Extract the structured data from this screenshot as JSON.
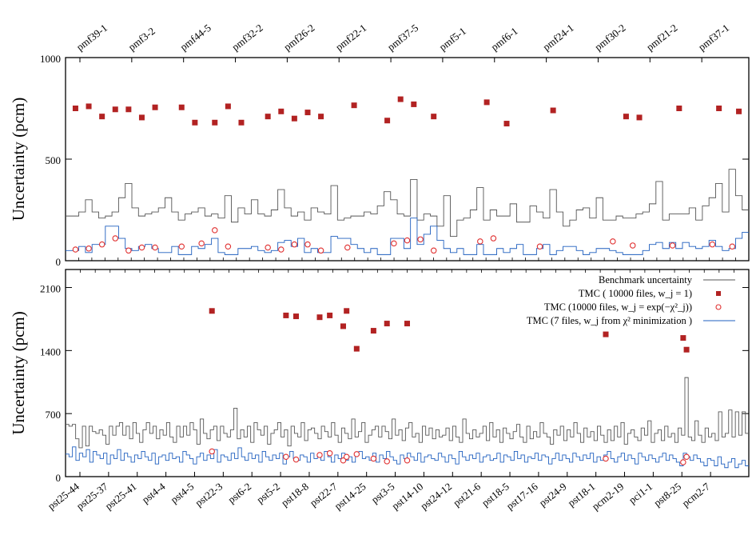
{
  "chart_data": [
    {
      "type": "scatter",
      "panel": "top",
      "title": "",
      "ylabel": "Uncertainty (pcm)",
      "xlabel": "",
      "ylim": [
        0,
        1000
      ],
      "yticks": [
        "0",
        "500",
        "1000"
      ],
      "top_tick_labels": [
        "pmf39-1",
        "pmf3-2",
        "pmf44-5",
        "pmf32-2",
        "pmf26-2",
        "pmf22-1",
        "pmf37-5",
        "pmf5-1",
        "pmf6-1",
        "pmf24-1",
        "pmf30-2",
        "pmf21-2",
        "pmf37-1"
      ],
      "series": [
        {
          "name": "Benchmark uncertainty",
          "style": "step",
          "color": "#555555",
          "values": [
            220,
            220,
            240,
            300,
            240,
            210,
            220,
            240,
            310,
            380,
            260,
            220,
            230,
            240,
            260,
            310,
            240,
            200,
            230,
            240,
            260,
            220,
            230,
            210,
            320,
            190,
            260,
            230,
            300,
            230,
            220,
            250,
            350,
            260,
            220,
            240,
            200,
            260,
            240,
            230,
            370,
            200,
            210,
            220,
            220,
            240,
            230,
            270,
            340,
            300,
            230,
            220,
            400,
            200,
            230,
            220,
            170,
            320,
            120,
            200,
            210,
            250,
            360,
            200,
            250,
            220,
            220,
            280,
            190,
            190,
            270,
            240,
            210,
            350,
            240,
            170,
            200,
            250,
            260,
            210,
            310,
            200,
            200,
            220,
            210,
            210,
            230,
            240,
            280,
            390,
            200,
            230,
            230,
            230,
            260,
            200,
            270,
            310,
            380,
            240,
            450,
            320,
            250
          ]
        },
        {
          "name": "TMC (7 files, w_j from χ² minimization)",
          "style": "step",
          "color": "#1f5fbf",
          "values": [
            50,
            50,
            70,
            40,
            80,
            80,
            170,
            170,
            110,
            60,
            50,
            70,
            80,
            60,
            40,
            40,
            70,
            30,
            30,
            70,
            60,
            80,
            110,
            40,
            30,
            30,
            60,
            60,
            70,
            50,
            40,
            50,
            90,
            100,
            70,
            110,
            40,
            60,
            40,
            40,
            120,
            110,
            110,
            80,
            60,
            40,
            60,
            30,
            30,
            110,
            110,
            60,
            210,
            80,
            130,
            170,
            100,
            60,
            40,
            60,
            30,
            30,
            80,
            30,
            30,
            60,
            40,
            60,
            80,
            30,
            30,
            60,
            80,
            30,
            50,
            70,
            70,
            50,
            30,
            40,
            60,
            60,
            50,
            40,
            30,
            30,
            30,
            50,
            80,
            90,
            60,
            90,
            60,
            90,
            70,
            60,
            70,
            100,
            70,
            50,
            60,
            110,
            140
          ]
        },
        {
          "name": "TMC ( 10000 files, w_j = 1)",
          "style": "square",
          "color": "#b22222",
          "points": [
            [
              1,
              750
            ],
            [
              3,
              760
            ],
            [
              5,
              710
            ],
            [
              7,
              745
            ],
            [
              9,
              745
            ],
            [
              11,
              705
            ],
            [
              13,
              755
            ],
            [
              17,
              755
            ],
            [
              19,
              680
            ],
            [
              22,
              680
            ],
            [
              24,
              760
            ],
            [
              26,
              680
            ],
            [
              30,
              710
            ],
            [
              32,
              735
            ],
            [
              34,
              700
            ],
            [
              36,
              730
            ],
            [
              38,
              710
            ],
            [
              43,
              765
            ],
            [
              48,
              690
            ],
            [
              50,
              795
            ],
            [
              52,
              770
            ],
            [
              55,
              710
            ],
            [
              63,
              780
            ],
            [
              66,
              675
            ],
            [
              73,
              740
            ],
            [
              84,
              710
            ],
            [
              86,
              705
            ],
            [
              92,
              750
            ],
            [
              98,
              750
            ],
            [
              101,
              735
            ],
            [
              111,
              775
            ],
            [
              121,
              740
            ],
            [
              132,
              740
            ]
          ]
        },
        {
          "name": "TMC (10000 files, w_j = exp(−χ²_j))",
          "style": "circle",
          "color": "#e03030",
          "points": [
            [
              1,
              55
            ],
            [
              3,
              60
            ],
            [
              5,
              80
            ],
            [
              7,
              110
            ],
            [
              9,
              50
            ],
            [
              11,
              65
            ],
            [
              13,
              65
            ],
            [
              17,
              70
            ],
            [
              20,
              85
            ],
            [
              22,
              150
            ],
            [
              24,
              70
            ],
            [
              30,
              65
            ],
            [
              32,
              55
            ],
            [
              34,
              80
            ],
            [
              36,
              80
            ],
            [
              38,
              50
            ],
            [
              42,
              65
            ],
            [
              49,
              85
            ],
            [
              51,
              100
            ],
            [
              53,
              105
            ],
            [
              55,
              50
            ],
            [
              62,
              95
            ],
            [
              64,
              110
            ],
            [
              71,
              70
            ],
            [
              82,
              95
            ],
            [
              85,
              75
            ],
            [
              91,
              75
            ],
            [
              97,
              80
            ],
            [
              100,
              70
            ],
            [
              112,
              140
            ],
            [
              122,
              60
            ],
            [
              133,
              55
            ]
          ]
        }
      ]
    },
    {
      "type": "scatter",
      "panel": "bottom",
      "title": "",
      "ylabel": "Uncertainty (pcm)",
      "xlabel": "",
      "ylim": [
        0,
        2300
      ],
      "yticks": [
        "0",
        "700",
        "1400",
        "2100"
      ],
      "x_tick_labels": [
        "pst25-44",
        "pst25-37",
        "pst25-41",
        "pst4-4",
        "pst4-5",
        "pst22-3",
        "pst6-2",
        "pst5-2",
        "pst18-8",
        "pst22-7",
        "pst14-25",
        "pst3-5",
        "pst14-10",
        "pst24-12",
        "pst21-6",
        "pst18-5",
        "pst17-16",
        "pst24-9",
        "pst18-1",
        "pcm2-19",
        "pci1-1",
        "pst8-25",
        "pcm2-7"
      ],
      "legend": {
        "position": "top-right",
        "entries": [
          "Benchmark uncertainty",
          "TMC ( 10000 files, w_j = 1)",
          "TMC (10000 files, w_j = exp(−χ²_j))",
          "TMC (7 files, w_j from χ² minimization )"
        ]
      },
      "series": [
        {
          "name": "Benchmark uncertainty",
          "style": "step",
          "color": "#555555",
          "values": [
            580,
            560,
            580,
            420,
            320,
            560,
            340,
            560,
            500,
            480,
            520,
            460,
            360,
            560,
            460,
            560,
            600,
            460,
            560,
            420,
            600,
            480,
            380,
            520,
            600,
            480,
            560,
            420,
            520,
            460,
            600,
            440,
            380,
            560,
            440,
            560,
            460,
            600,
            520,
            360,
            640,
            480,
            420,
            520,
            560,
            400,
            560,
            480,
            440,
            520,
            760,
            420,
            520,
            440,
            560,
            380,
            600,
            520,
            460,
            560,
            360,
            480,
            520,
            600,
            440,
            520,
            340,
            560,
            480,
            440,
            600,
            400,
            520,
            540,
            480,
            420,
            560,
            500,
            440,
            600,
            460,
            380,
            540,
            480,
            420,
            640,
            440,
            500,
            600,
            380,
            460,
            520,
            560,
            440,
            560,
            500,
            420,
            640,
            460,
            520,
            400,
            540,
            600,
            440,
            480,
            380,
            560,
            460,
            540,
            420,
            520,
            440,
            460,
            540,
            400,
            560,
            440,
            380,
            640,
            480,
            420,
            520,
            440,
            480,
            560,
            400,
            600,
            440,
            520,
            380,
            540,
            480,
            420,
            500,
            580,
            440,
            380,
            560,
            420,
            500,
            440,
            600,
            480,
            440,
            360,
            520,
            460,
            560,
            400,
            520,
            440,
            600,
            480,
            380,
            540,
            440,
            500,
            400,
            560,
            460,
            380,
            520,
            400,
            560,
            440,
            600,
            360,
            480,
            520,
            440,
            400,
            540,
            460,
            620,
            380,
            480,
            520,
            400,
            560,
            440,
            480,
            380,
            540,
            460,
            1100,
            440,
            400,
            620,
            460,
            380,
            540,
            440,
            480,
            400,
            720,
            440,
            480,
            740,
            440,
            720,
            460,
            720,
            480
          ]
        },
        {
          "name": "TMC (7 files, w_j from χ² minimization )",
          "style": "step",
          "color": "#1f5fbf",
          "values": [
            250,
            220,
            330,
            180,
            260,
            220,
            300,
            160,
            280,
            240,
            200,
            260,
            140,
            240,
            200,
            300,
            180,
            260,
            220,
            160,
            240,
            200,
            280,
            220,
            180,
            260,
            140,
            220,
            240,
            180,
            260,
            200,
            220,
            160,
            280,
            240,
            200,
            140,
            220,
            260,
            180,
            240,
            200,
            300,
            160,
            240,
            220,
            180,
            260,
            200,
            320,
            220,
            180,
            260,
            200,
            240,
            160,
            280,
            220,
            180,
            240,
            200,
            260,
            140,
            220,
            280,
            200,
            180,
            240,
            220,
            160,
            260,
            200,
            240,
            180,
            280,
            220,
            160,
            240,
            200,
            260,
            180,
            220,
            160,
            240,
            280,
            200,
            220,
            180,
            260,
            160,
            240,
            200,
            280,
            220,
            180,
            140,
            240,
            200,
            260,
            220,
            180,
            260,
            160,
            220,
            240,
            200,
            180,
            260,
            220,
            160,
            240,
            200,
            140,
            280,
            220,
            180,
            240,
            200,
            260,
            160,
            220,
            240,
            180,
            200,
            260,
            160,
            240,
            220,
            180,
            280,
            200,
            240,
            160,
            220,
            200,
            260,
            180,
            240,
            220,
            140,
            200,
            260,
            180,
            240,
            200,
            160,
            260,
            220,
            180,
            240,
            200,
            260,
            160,
            220,
            180,
            240,
            280,
            200,
            160,
            220,
            260,
            180,
            240,
            200,
            140,
            260,
            220,
            180,
            240,
            200,
            160,
            220,
            260,
            180,
            240,
            200,
            160,
            120,
            260,
            220,
            180,
            240,
            200,
            160,
            120,
            200,
            180,
            120,
            220,
            140,
            100,
            160,
            200,
            100,
            140,
            180,
            120
          ]
        },
        {
          "name": "TMC ( 10000 files, w_j = 1)",
          "style": "square",
          "color": "#b22222",
          "points": [
            [
              43,
              1840
            ],
            [
              65,
              1790
            ],
            [
              68,
              1780
            ],
            [
              75,
              1770
            ],
            [
              78,
              1790
            ],
            [
              82,
              1670
            ],
            [
              83,
              1840
            ],
            [
              86,
              1420
            ],
            [
              91,
              1620
            ],
            [
              95,
              1700
            ],
            [
              101,
              1700
            ],
            [
              160,
              1580
            ],
            [
              183,
              1540
            ],
            [
              184,
              1410
            ]
          ]
        },
        {
          "name": "TMC (10000 files, w_j = exp(−χ²_j))",
          "style": "circle",
          "color": "#e03030",
          "points": [
            [
              43,
              280
            ],
            [
              65,
              220
            ],
            [
              68,
              190
            ],
            [
              75,
              240
            ],
            [
              78,
              260
            ],
            [
              82,
              180
            ],
            [
              83,
              220
            ],
            [
              86,
              250
            ],
            [
              91,
              200
            ],
            [
              95,
              170
            ],
            [
              101,
              180
            ],
            [
              160,
              200
            ],
            [
              183,
              160
            ],
            [
              184,
              220
            ]
          ]
        }
      ]
    }
  ]
}
